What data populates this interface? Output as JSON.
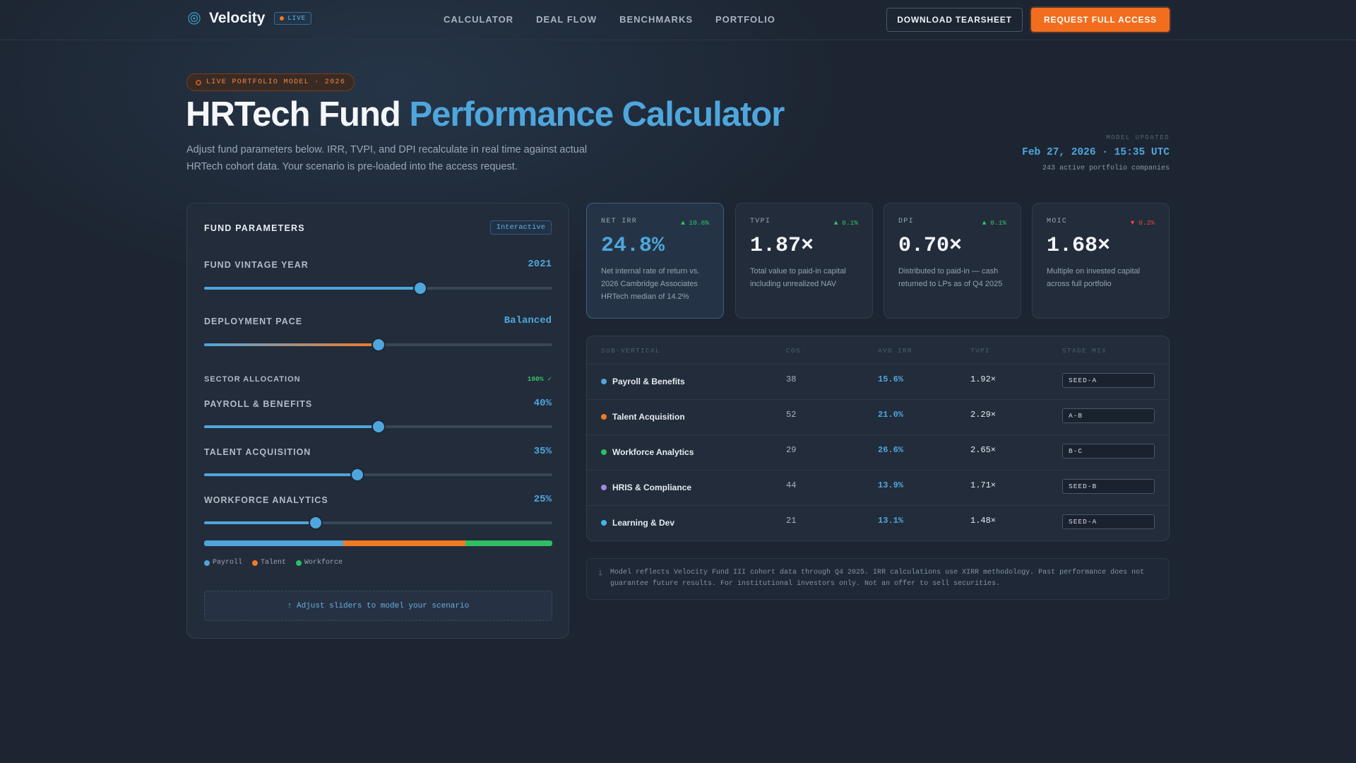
{
  "nav": {
    "brand": "Velocity",
    "live_label": "LIVE",
    "links": [
      "CALCULATOR",
      "DEAL FLOW",
      "BENCHMARKS",
      "PORTFOLIO"
    ],
    "download_label": "DOWNLOAD TEARSHEET",
    "request_label": "REQUEST FULL ACCESS"
  },
  "hero": {
    "pill": "LIVE PORTFOLIO MODEL · 2026",
    "title_main": "HRTech Fund",
    "title_accent": "Performance Calculator",
    "subtitle": "Adjust fund parameters below. IRR, TVPI, and DPI recalculate in real time against actual HRTech cohort data. Your scenario is pre-loaded into the access request.",
    "updated_label": "MODEL UPDATED",
    "updated_time": "Feb 27, 2026 · 15:35 UTC",
    "updated_count": "243 active portfolio companies"
  },
  "params": {
    "title": "FUND PARAMETERS",
    "badge": "Interactive",
    "vintage": {
      "label": "FUND VINTAGE YEAR",
      "value": "2021",
      "level": 0.62
    },
    "pace": {
      "label": "DEPLOYMENT PACE",
      "value": "Balanced",
      "level": 0.5
    },
    "sector_title": "SECTOR ALLOCATION",
    "sector_check": "100% ✓",
    "payroll": {
      "label": "PAYROLL & BENEFITS",
      "value": "40%",
      "level": 0.5
    },
    "talent": {
      "label": "TALENT ACQUISITION",
      "value": "35%",
      "level": 0.44
    },
    "workforce": {
      "label": "WORKFORCE ANALYTICS",
      "value": "25%",
      "level": 0.32
    },
    "allocation": [
      {
        "name": "Payroll",
        "share": 40,
        "color": "#4fa6dc"
      },
      {
        "name": "Talent",
        "share": 35,
        "color": "#f47a22"
      },
      {
        "name": "Workforce",
        "share": 25,
        "color": "#2fbf63"
      }
    ],
    "hint": "↑ Adjust sliders to model your scenario"
  },
  "metrics": [
    {
      "label": "NET IRR",
      "delta": "▲ 10.6%",
      "delta_color": "#36c46a",
      "value": "24.8%",
      "desc": "Net internal rate of return vs. 2026 Cambridge Associates HRTech median of 14.2%"
    },
    {
      "label": "TVPI",
      "delta": "▲ 0.1%",
      "delta_color": "#36c46a",
      "value": "1.87×",
      "desc": "Total value to paid-in capital including unrealized NAV"
    },
    {
      "label": "DPI",
      "delta": "▲ 0.1%",
      "delta_color": "#36c46a",
      "value": "0.70×",
      "desc": "Distributed to paid-in — cash returned to LPs as of Q4 2025"
    },
    {
      "label": "MOIC",
      "delta": "▼ 0.2%",
      "delta_color": "#e0483e",
      "value": "1.68×",
      "desc": "Multiple on invested capital across full portfolio"
    }
  ],
  "table": {
    "headers": [
      "SUB-VERTICAL",
      "COS.",
      "AVG IRR",
      "TVPI",
      "STAGE MIX"
    ],
    "rows": [
      {
        "name": "Payroll & Benefits",
        "dot": "#4fa6dc",
        "cos": "38",
        "irr": "15.6%",
        "tvpi": "1.92×",
        "stage": "SEED-A"
      },
      {
        "name": "Talent Acquisition",
        "dot": "#f47a22",
        "cos": "52",
        "irr": "21.0%",
        "tvpi": "2.29×",
        "stage": "A-B"
      },
      {
        "name": "Workforce Analytics",
        "dot": "#2fbf63",
        "cos": "29",
        "irr": "26.6%",
        "tvpi": "2.65×",
        "stage": "B-C"
      },
      {
        "name": "HRIS & Compliance",
        "dot": "#a585e8",
        "cos": "44",
        "irr": "13.9%",
        "tvpi": "1.71×",
        "stage": "SEED-B"
      },
      {
        "name": "Learning & Dev",
        "dot": "#3fb8e8",
        "cos": "21",
        "irr": "13.1%",
        "tvpi": "1.48×",
        "stage": "SEED-A"
      }
    ]
  },
  "disclaimer": {
    "icon": "i",
    "text": "Model reflects Velocity Fund III cohort data through Q4 2025. IRR calculations use XIRR methodology. Past performance does not guarantee future results. For institutional investors only. Not an offer to sell securities."
  }
}
